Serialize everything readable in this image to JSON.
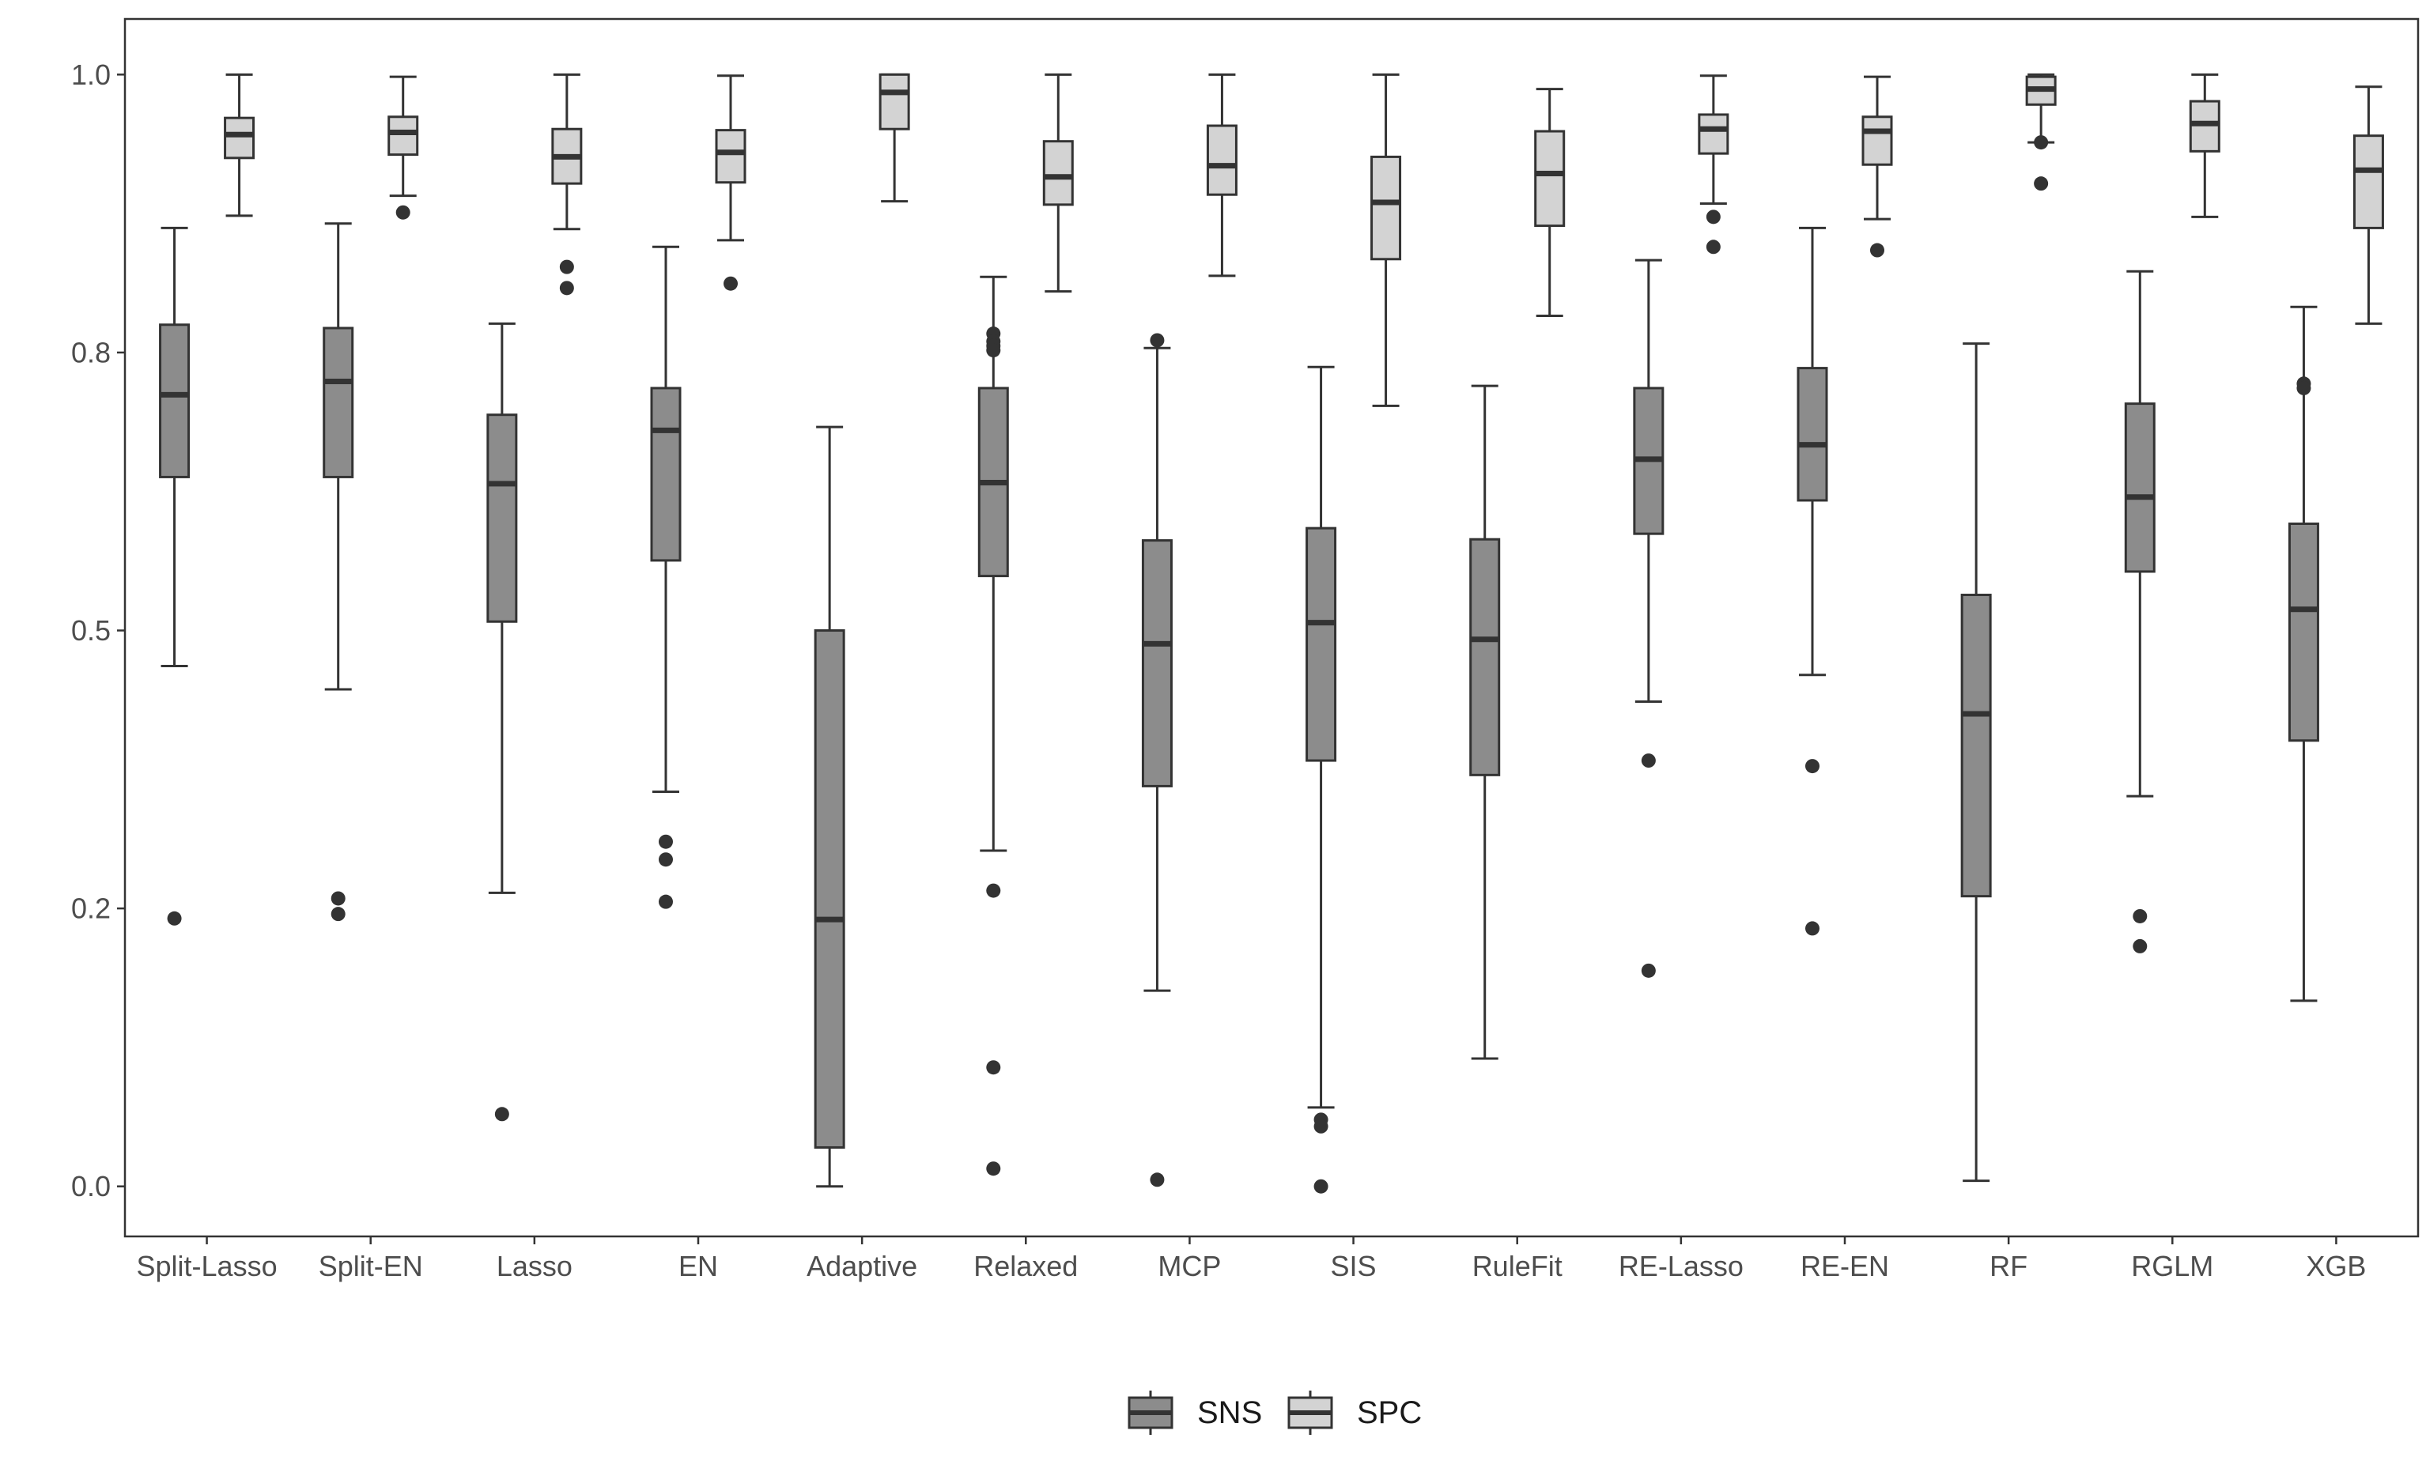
{
  "chart_data": {
    "type": "boxplot",
    "title": "",
    "xlabel": "",
    "ylabel": "",
    "ylim": [
      -0.045,
      1.05
    ],
    "yticks": [
      0.0,
      0.25,
      0.5,
      0.75,
      1.0
    ],
    "ytick_labels": [
      "0.0",
      "0.2",
      "0.5",
      "0.8",
      "1.0"
    ],
    "grid": false,
    "legend_position": "bottom",
    "categories": [
      "Split-Lasso",
      "Split-EN",
      "Lasso",
      "EN",
      "Adaptive",
      "Relaxed",
      "MCP",
      "SIS",
      "RuleFit",
      "RE-Lasso",
      "RE-EN",
      "RF",
      "RGLM",
      "XGB"
    ],
    "series": [
      {
        "name": "SNS",
        "color": "#8c8c8c",
        "boxes": [
          {
            "min": 0.468,
            "q1": 0.638,
            "median": 0.712,
            "q3": 0.775,
            "max": 0.862,
            "outliers": [
              0.241
            ]
          },
          {
            "min": 0.447,
            "q1": 0.638,
            "median": 0.724,
            "q3": 0.772,
            "max": 0.866,
            "outliers": [
              0.259,
              0.245
            ]
          },
          {
            "min": 0.264,
            "q1": 0.508,
            "median": 0.632,
            "q3": 0.694,
            "max": 0.776,
            "outliers": [
              0.065
            ]
          },
          {
            "min": 0.355,
            "q1": 0.563,
            "median": 0.68,
            "q3": 0.718,
            "max": 0.845,
            "outliers": [
              0.31,
              0.294,
              0.256
            ]
          },
          {
            "min": 0.0,
            "q1": 0.035,
            "median": 0.24,
            "q3": 0.5,
            "max": 0.683,
            "outliers": []
          },
          {
            "min": 0.302,
            "q1": 0.549,
            "median": 0.633,
            "q3": 0.718,
            "max": 0.818,
            "outliers": [
              0.266,
              0.107,
              0.016,
              0.767,
              0.76,
              0.756,
              0.752
            ]
          },
          {
            "min": 0.176,
            "q1": 0.36,
            "median": 0.488,
            "q3": 0.581,
            "max": 0.754,
            "outliers": [
              0.006,
              0.761
            ]
          },
          {
            "min": 0.071,
            "q1": 0.383,
            "median": 0.507,
            "q3": 0.592,
            "max": 0.737,
            "outliers": [
              0.06,
              0.054,
              0.0
            ]
          },
          {
            "min": 0.115,
            "q1": 0.37,
            "median": 0.492,
            "q3": 0.582,
            "max": 0.72,
            "outliers": []
          },
          {
            "min": 0.436,
            "q1": 0.587,
            "median": 0.654,
            "q3": 0.718,
            "max": 0.833,
            "outliers": [
              0.383,
              0.194
            ]
          },
          {
            "min": 0.46,
            "q1": 0.617,
            "median": 0.667,
            "q3": 0.736,
            "max": 0.862,
            "outliers": [
              0.378,
              0.232
            ]
          },
          {
            "min": 0.005,
            "q1": 0.261,
            "median": 0.425,
            "q3": 0.532,
            "max": 0.758,
            "outliers": []
          },
          {
            "min": 0.351,
            "q1": 0.553,
            "median": 0.62,
            "q3": 0.704,
            "max": 0.823,
            "outliers": [
              0.243,
              0.216
            ]
          },
          {
            "min": 0.167,
            "q1": 0.401,
            "median": 0.519,
            "q3": 0.596,
            "max": 0.791,
            "outliers": [
              0.722,
              0.718
            ]
          }
        ]
      },
      {
        "name": "SPC",
        "color": "#d3d3d3",
        "boxes": [
          {
            "min": 0.873,
            "q1": 0.925,
            "median": 0.946,
            "q3": 0.961,
            "max": 1.0,
            "outliers": []
          },
          {
            "min": 0.891,
            "q1": 0.928,
            "median": 0.948,
            "q3": 0.962,
            "max": 0.998,
            "outliers": [
              0.876
            ]
          },
          {
            "min": 0.861,
            "q1": 0.902,
            "median": 0.926,
            "q3": 0.951,
            "max": 1.0,
            "outliers": [
              0.827,
              0.808
            ]
          },
          {
            "min": 0.851,
            "q1": 0.903,
            "median": 0.93,
            "q3": 0.95,
            "max": 0.999,
            "outliers": [
              0.812
            ]
          },
          {
            "min": 0.886,
            "q1": 0.951,
            "median": 0.984,
            "q3": 1.0,
            "max": 1.0,
            "outliers": []
          },
          {
            "min": 0.805,
            "q1": 0.883,
            "median": 0.908,
            "q3": 0.94,
            "max": 1.0,
            "outliers": []
          },
          {
            "min": 0.819,
            "q1": 0.892,
            "median": 0.918,
            "q3": 0.954,
            "max": 1.0,
            "outliers": []
          },
          {
            "min": 0.702,
            "q1": 0.834,
            "median": 0.885,
            "q3": 0.926,
            "max": 1.0,
            "outliers": []
          },
          {
            "min": 0.783,
            "q1": 0.864,
            "median": 0.911,
            "q3": 0.949,
            "max": 0.987,
            "outliers": []
          },
          {
            "min": 0.884,
            "q1": 0.929,
            "median": 0.951,
            "q3": 0.964,
            "max": 0.999,
            "outliers": [
              0.872,
              0.845
            ]
          },
          {
            "min": 0.87,
            "q1": 0.919,
            "median": 0.949,
            "q3": 0.962,
            "max": 0.998,
            "outliers": [
              0.842
            ]
          },
          {
            "min": 0.939,
            "q1": 0.973,
            "median": 0.987,
            "q3": 0.998,
            "max": 1.0,
            "outliers": [
              0.939,
              0.902
            ]
          },
          {
            "min": 0.872,
            "q1": 0.931,
            "median": 0.956,
            "q3": 0.976,
            "max": 1.0,
            "outliers": []
          },
          {
            "min": 0.776,
            "q1": 0.862,
            "median": 0.914,
            "q3": 0.945,
            "max": 0.989,
            "outliers": []
          }
        ]
      }
    ]
  }
}
